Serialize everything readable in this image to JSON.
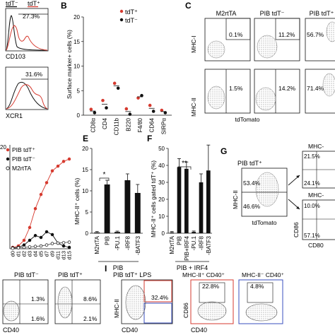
{
  "panels": {
    "A_top": {
      "legend_neg": "tdT⁻",
      "legend_pos": "tdT⁺",
      "gate_pct": "27.3%",
      "xlabel": "CD103"
    },
    "A_mid": {
      "gate_pct": "31.6%",
      "xlabel": "XCR1"
    },
    "B": {
      "letter": "B",
      "ylabel": "Surface marker+ cells (%)",
      "legend_pos": "tdT⁺",
      "legend_neg": "tdT⁻",
      "yticks": [
        "0",
        "5",
        "10",
        "15",
        "20"
      ]
    },
    "C": {
      "letter": "C",
      "col1": "M2rtTA",
      "col2": "PIB tdT⁻",
      "col3": "PIB tdT⁺",
      "row1_label": "MHC-I",
      "row2_label": "MHC-II",
      "xlabel": "tdTomato",
      "r1c1": "0.1%",
      "r1c2": "11.2%",
      "r1c3": "56.7%",
      "r2c1": "1.5%",
      "r2c2": "14.2%",
      "r2c3": "71.4%"
    },
    "D": {
      "legend": [
        "PIB tdT⁺",
        "PIB tdT⁻",
        "M2rtTA"
      ],
      "ytick_top": "20",
      "xticks": [
        "d0",
        "d1",
        "d2",
        "d3",
        "d4",
        "d5",
        "d7",
        "d9",
        "d11",
        "d13",
        "d15"
      ]
    },
    "E": {
      "letter": "E",
      "ylabel": "MHC-II⁺ cells (%)",
      "yticks": [
        "0",
        "5",
        "10",
        "15",
        "20"
      ],
      "categories": [
        "M2rtTA",
        "PIB",
        "-PU.1",
        "-IRF8",
        "-BATF3"
      ],
      "group": "PIB",
      "sig": "*"
    },
    "F": {
      "letter": "F",
      "ylabel": "MHC-II⁺ cells gated tdT⁺ (%)",
      "yticks": [
        "0",
        "10",
        "20",
        "30",
        "40",
        "50"
      ],
      "categories": [
        "M2rtTA",
        "PIB",
        "PIB+IRF4",
        "-PU.1",
        "-IRF8",
        "-BATF3"
      ],
      "group": "PIB + IRF4",
      "sig": "**"
    },
    "G": {
      "letter": "G",
      "title": "PIB tdT⁺",
      "ylabel": "MHC-II",
      "xlabel": "tdTomato",
      "q_upper": "53.4%",
      "q_lower": "46.6%",
      "right_title1": "MHC-",
      "right_title2": "MHC-",
      "r1_ul": "21.5%",
      "r1_ll": "24.1%",
      "r2_ul": "10.0%",
      "r2_ll": "57.1%",
      "ylabel2": "CD86",
      "xlabel2": "CD80"
    },
    "H": {
      "title1": "PIB tdT⁻",
      "title2": "PIB tdT⁺",
      "xlabel": "CD40",
      "h1_ur": "1.3%",
      "h1_lr": "1.6%",
      "h2_ur": "8.6%",
      "h2_lr": "2.1%"
    },
    "I": {
      "letter": "I",
      "title1": "PIB tdT⁺ LPS",
      "ylabel1": "MHC-II",
      "xlabel1": "CD40",
      "gate": "32.4%",
      "title2": "MHC-II⁺ CD40⁺",
      "title3": "MHC-II⁻ CD40⁺",
      "ylabel2": "CD86",
      "xlabel2": "CD40",
      "g2": "22.8%",
      "g3": "4.8%"
    }
  },
  "chart_data": [
    {
      "panel": "B",
      "type": "scatter",
      "categories": [
        "CD8α",
        "CD4",
        "CD11b",
        "B220",
        "F4/80",
        "CD64",
        "SIRPα"
      ],
      "series": [
        {
          "name": "tdT⁺",
          "color": "#d63a2f",
          "values": [
            1.2,
            3.0,
            6.5,
            1.3,
            3.5,
            2.0,
            1.0
          ]
        },
        {
          "name": "tdT⁻",
          "color": "#111111",
          "values": [
            0.5,
            1.5,
            5.5,
            0.2,
            4.0,
            0.8,
            0.5
          ]
        }
      ],
      "ylim": [
        0,
        20
      ]
    },
    {
      "panel": "D",
      "type": "line",
      "x": [
        "d0",
        "d1",
        "d2",
        "d3",
        "d4",
        "d5",
        "d7",
        "d9",
        "d11",
        "d13",
        "d15"
      ],
      "series": [
        {
          "name": "PIB tdT⁺",
          "color": "#d63a2f",
          "values": [
            0.3,
            0.6,
            1.8,
            4.5,
            8.5,
            11.5,
            14.0,
            16.5,
            17.5,
            18.5,
            19.0
          ]
        },
        {
          "name": "PIB tdT⁻",
          "color": "#111111",
          "values": [
            0.2,
            0.3,
            0.8,
            1.8,
            2.8,
            2.4,
            3.6,
            3.0,
            1.2,
            0.6,
            0.3
          ]
        },
        {
          "name": "M2rtTA",
          "color": "#555555",
          "values": [
            0.1,
            0.2,
            0.3,
            0.4,
            0.5,
            0.6,
            0.8,
            1.1,
            1.2,
            1.3,
            1.4
          ]
        }
      ],
      "ylim": [
        0,
        22
      ]
    },
    {
      "panel": "E",
      "type": "bar",
      "categories": [
        "M2rtTA",
        "PIB",
        "-PU.1",
        "-IRF8",
        "-BATF3"
      ],
      "values": [
        0.2,
        11.5,
        0.3,
        12.5,
        9.5
      ],
      "errors": [
        0.2,
        1.0,
        0.2,
        1.5,
        2.0
      ],
      "ylim": [
        0,
        20
      ]
    },
    {
      "panel": "F",
      "type": "bar",
      "categories": [
        "M2rtTA",
        "PIB",
        "PIB+IRF4",
        "-PU.1",
        "-IRF8",
        "-BATF3"
      ],
      "values": [
        0.5,
        39,
        38,
        0.8,
        30,
        37
      ],
      "errors": [
        0.5,
        5,
        4,
        0.5,
        5,
        15
      ],
      "ylim": [
        0,
        50
      ]
    }
  ]
}
